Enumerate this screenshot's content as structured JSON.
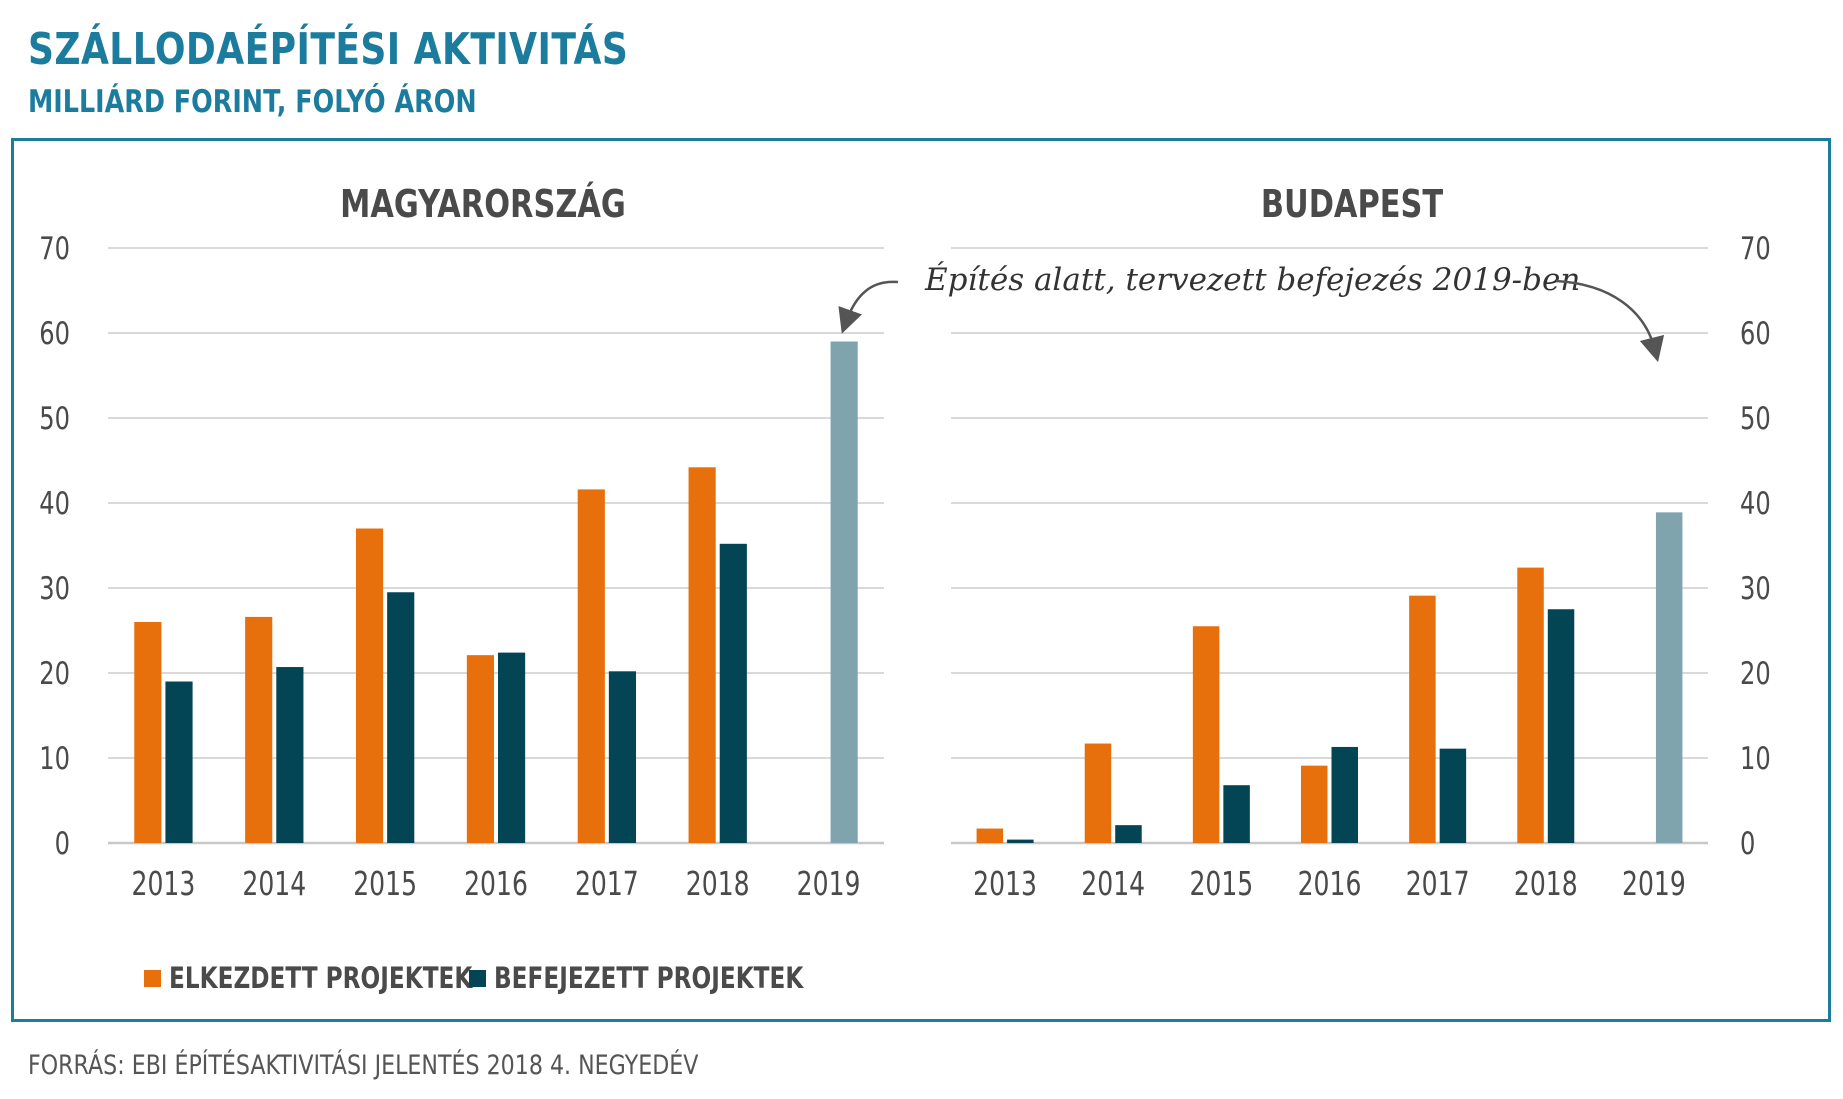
{
  "header": {
    "title": "SZÁLLODAÉPÍTÉSI AKTIVITÁS",
    "subtitle": "MILLIÁRD FORINT, FOLYÓ ÁRON"
  },
  "colors": {
    "brand": "#1b7c9e",
    "started": "#e8700c",
    "completed": "#034455",
    "planned": "#80a4ae",
    "grid": "#d9d9d9"
  },
  "annotation": "Építés alatt, tervezett befejezés 2019-ben",
  "legend": {
    "started": "ELKEZDETT PROJEKTEK",
    "completed": "BEFEJEZETT PROJEKTEK"
  },
  "source": "FORRÁS: EBI ÉPÍTÉSAKTIVITÁSI JELENTÉS 2018 4. NEGYEDÉV",
  "chart_data": [
    {
      "type": "bar",
      "title": "MAGYARORSZÁG",
      "categories": [
        "2013",
        "2014",
        "2015",
        "2016",
        "2017",
        "2018",
        "2019"
      ],
      "ylim": [
        0,
        70
      ],
      "yticks": [
        0,
        10,
        20,
        30,
        40,
        50,
        60,
        70
      ],
      "axis_side": "left",
      "series": [
        {
          "name": "ELKEZDETT PROJEKTEK",
          "values": [
            26,
            26.6,
            37,
            22.1,
            41.6,
            44.2,
            null
          ]
        },
        {
          "name": "BEFEJEZETT PROJEKTEK",
          "values": [
            19,
            20.7,
            29.5,
            22.4,
            20.2,
            35.2,
            null
          ]
        }
      ],
      "planned_2019": 59
    },
    {
      "type": "bar",
      "title": "BUDAPEST",
      "categories": [
        "2013",
        "2014",
        "2015",
        "2016",
        "2017",
        "2018",
        "2019"
      ],
      "ylim": [
        0,
        70
      ],
      "yticks": [
        0,
        10,
        20,
        30,
        40,
        50,
        60,
        70
      ],
      "axis_side": "right",
      "series": [
        {
          "name": "ELKEZDETT PROJEKTEK",
          "values": [
            1.7,
            11.7,
            25.5,
            9.1,
            29.1,
            32.4,
            null
          ]
        },
        {
          "name": "BEFEJEZETT PROJEKTEK",
          "values": [
            0.4,
            2.1,
            6.8,
            11.3,
            11.1,
            27.5,
            null
          ]
        }
      ],
      "planned_2019": 38.9
    }
  ]
}
